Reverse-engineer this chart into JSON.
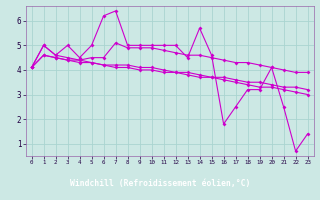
{
  "xlabel": "Windchill (Refroidissement éolien,°C)",
  "background_color": "#cce8e4",
  "grid_color": "#aad4d0",
  "line_color": "#cc00cc",
  "bottom_bar_color": "#440066",
  "xlim": [
    -0.5,
    23.5
  ],
  "ylim": [
    0.5,
    6.6
  ],
  "xticks": [
    0,
    1,
    2,
    3,
    4,
    5,
    6,
    7,
    8,
    9,
    10,
    11,
    12,
    13,
    14,
    15,
    16,
    17,
    18,
    19,
    20,
    21,
    22,
    23
  ],
  "yticks": [
    1,
    2,
    3,
    4,
    5,
    6
  ],
  "lines": [
    [
      4.1,
      5.0,
      4.6,
      5.0,
      4.5,
      5.0,
      6.2,
      6.4,
      5.0,
      5.0,
      5.0,
      5.0,
      5.0,
      4.5,
      5.7,
      4.6,
      1.8,
      2.5,
      3.2,
      3.2,
      4.1,
      2.5,
      0.7,
      1.4
    ],
    [
      4.1,
      5.0,
      4.6,
      4.5,
      4.4,
      4.5,
      4.5,
      5.1,
      4.9,
      4.9,
      4.9,
      4.8,
      4.7,
      4.6,
      4.6,
      4.5,
      4.4,
      4.3,
      4.3,
      4.2,
      4.1,
      4.0,
      3.9,
      3.9
    ],
    [
      4.1,
      4.6,
      4.5,
      4.4,
      4.4,
      4.3,
      4.2,
      4.2,
      4.2,
      4.1,
      4.1,
      4.0,
      3.9,
      3.9,
      3.8,
      3.7,
      3.7,
      3.6,
      3.5,
      3.5,
      3.4,
      3.3,
      3.3,
      3.2
    ],
    [
      4.1,
      4.6,
      4.5,
      4.4,
      4.3,
      4.3,
      4.2,
      4.1,
      4.1,
      4.0,
      4.0,
      3.9,
      3.9,
      3.8,
      3.7,
      3.7,
      3.6,
      3.5,
      3.4,
      3.3,
      3.3,
      3.2,
      3.1,
      3.0
    ]
  ]
}
